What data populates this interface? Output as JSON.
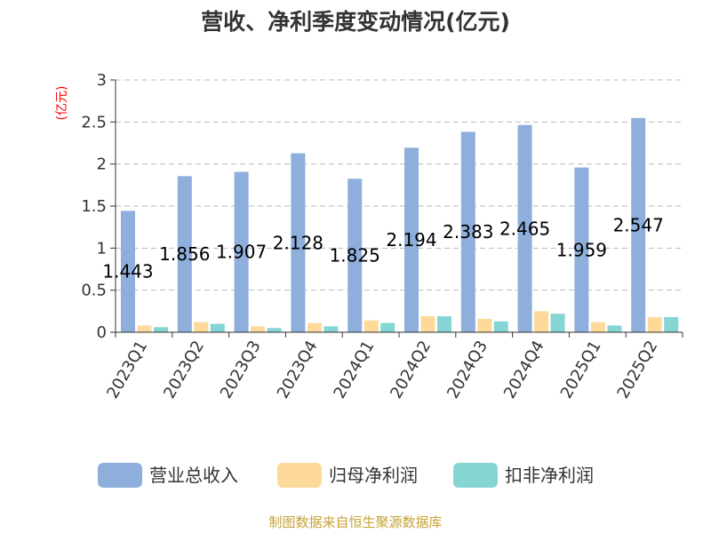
{
  "chart_data": {
    "type": "bar",
    "title": "营收、净利季度变动情况(亿元)",
    "unit_label": "(亿元)",
    "categories": [
      "2023Q1",
      "2023Q2",
      "2023Q3",
      "2023Q4",
      "2024Q1",
      "2024Q2",
      "2024Q3",
      "2024Q4",
      "2025Q1",
      "2025Q2"
    ],
    "series": [
      {
        "name": "营业总收入",
        "color": "#8eaedb",
        "values": [
          1.443,
          1.856,
          1.907,
          2.128,
          1.825,
          2.194,
          2.383,
          2.465,
          1.959,
          2.547
        ]
      },
      {
        "name": "归母净利润",
        "color": "#fdd99a",
        "values": [
          0.08,
          0.12,
          0.07,
          0.11,
          0.14,
          0.19,
          0.16,
          0.25,
          0.12,
          0.18
        ]
      },
      {
        "name": "扣非净利润",
        "color": "#85d5d5",
        "values": [
          0.06,
          0.1,
          0.05,
          0.07,
          0.11,
          0.19,
          0.13,
          0.22,
          0.08,
          0.18
        ]
      }
    ],
    "data_labels": [
      "1.443",
      "1.856",
      "1.907",
      "2.128",
      "1.825",
      "2.194",
      "2.383",
      "2.465",
      "1.959",
      "2.547"
    ],
    "ylim": [
      0,
      3
    ],
    "yticks": [
      "0",
      "0.5",
      "1",
      "1.5",
      "2",
      "2.5",
      "3"
    ],
    "grid": true,
    "legend_position": "bottom"
  },
  "footer": {
    "source": "制图数据来自恒生聚源数据库"
  }
}
